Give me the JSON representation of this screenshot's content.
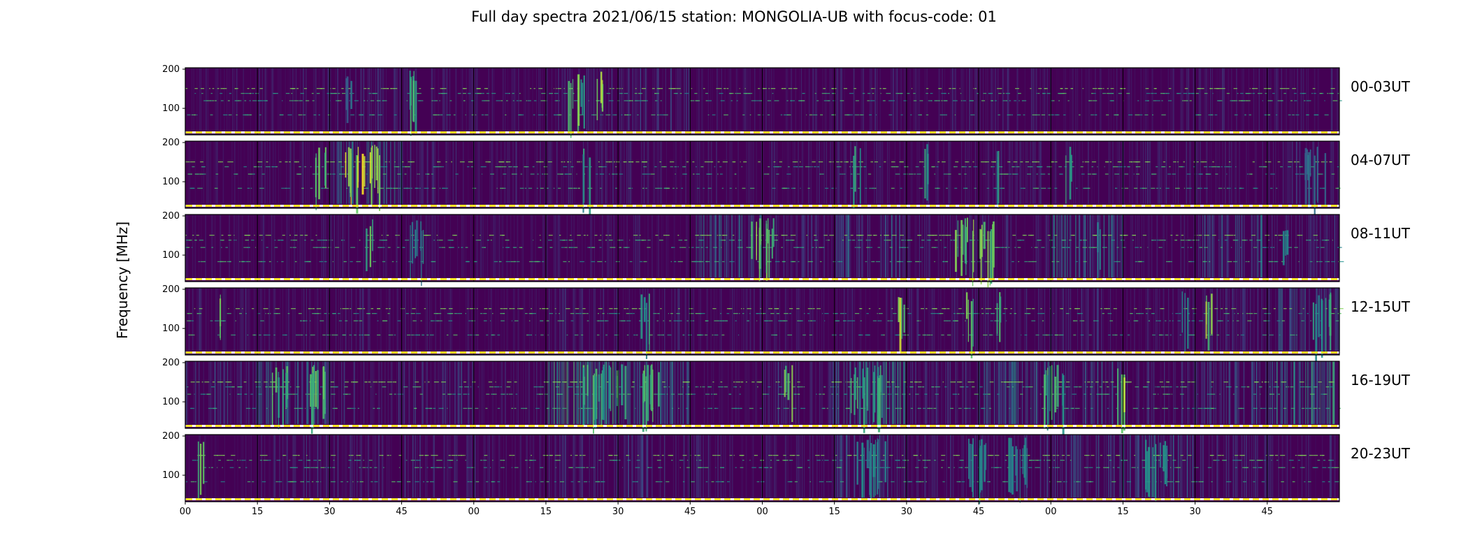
{
  "title": "Full day spectra 2021/06/15 station: MONGOLIA-UB with focus-code: 01",
  "ylabel": "Frequency [MHz]",
  "chart_data": {
    "type": "heatmap",
    "title": "Full day spectra 2021/06/15 station: MONGOLIA-UB with focus-code: 01",
    "ylabel": "Frequency [MHz]",
    "ylim": [
      45,
      200
    ],
    "y_ticks": [
      "100",
      "200"
    ],
    "x_ticks": [
      "00",
      "15",
      "30",
      "45",
      "00",
      "15",
      "30",
      "45",
      "00",
      "15",
      "30",
      "45",
      "00",
      "15",
      "30",
      "45"
    ],
    "colormap": "viridis",
    "colors": {
      "low": "#440154",
      "mid": "#21918c",
      "high": "#fde725",
      "marker": "#fde725"
    },
    "rows": [
      {
        "label": "00-03UT",
        "segments": 16,
        "bright_bursts": [
          [
            3.1,
            0.2,
            0.7
          ],
          [
            5.3,
            0.15,
            0.9
          ],
          [
            5.7,
            0.12,
            0.9
          ],
          [
            5.45,
            0.1,
            0.6
          ],
          [
            2.2,
            0.1,
            0.4
          ]
        ],
        "activity": [
          0.05,
          0.12,
          0.15,
          0.12,
          0.08,
          0.15,
          0.22,
          0.08,
          0.08,
          0.12,
          0.1,
          0.15,
          0.05,
          0.1,
          0.12,
          0.1
        ]
      },
      {
        "label": "04-07UT",
        "segments": 16,
        "bright_bursts": [
          [
            1.8,
            0.15,
            0.8
          ],
          [
            2.2,
            0.5,
            1.0
          ],
          [
            5.5,
            0.1,
            0.6
          ],
          [
            9.25,
            0.1,
            0.6
          ],
          [
            10.2,
            0.1,
            0.6
          ],
          [
            11.2,
            0.1,
            0.6
          ],
          [
            12.2,
            0.1,
            0.6
          ],
          [
            15.5,
            0.3,
            0.4
          ]
        ],
        "activity": [
          0.05,
          0.1,
          0.45,
          0.15,
          0.12,
          0.15,
          0.1,
          0.08,
          0.1,
          0.12,
          0.1,
          0.12,
          0.1,
          0.12,
          0.1,
          0.15
        ]
      },
      {
        "label": "08-11UT",
        "segments": 16,
        "bright_bursts": [
          [
            2.5,
            0.1,
            0.8
          ],
          [
            3.1,
            0.2,
            0.5
          ],
          [
            7.8,
            0.4,
            0.8
          ],
          [
            10.6,
            0.6,
            0.8
          ],
          [
            12.6,
            0.1,
            0.5
          ],
          [
            15.2,
            0.1,
            0.5
          ]
        ],
        "activity": [
          0.05,
          0.1,
          0.1,
          0.08,
          0.08,
          0.1,
          0.08,
          0.4,
          0.2,
          0.35,
          0.15,
          0.15,
          0.45,
          0.08,
          0.35,
          0.2
        ]
      },
      {
        "label": "12-15UT",
        "segments": 16,
        "bright_bursts": [
          [
            0.4,
            0.1,
            0.9
          ],
          [
            6.3,
            0.15,
            0.6
          ],
          [
            9.85,
            0.12,
            0.9
          ],
          [
            10.8,
            0.12,
            0.8
          ],
          [
            11.2,
            0.1,
            0.7
          ],
          [
            13.8,
            0.1,
            0.6
          ],
          [
            14.1,
            0.12,
            0.9
          ],
          [
            15.6,
            0.3,
            0.6
          ]
        ],
        "activity": [
          0.12,
          0.12,
          0.12,
          0.08,
          0.05,
          0.15,
          0.12,
          0.12,
          0.1,
          0.1,
          0.15,
          0.15,
          0.18,
          0.12,
          0.2,
          0.35
        ]
      },
      {
        "label": "16-19UT",
        "segments": 16,
        "bright_bursts": [
          [
            1.2,
            0.2,
            0.7
          ],
          [
            1.7,
            0.3,
            0.8
          ],
          [
            5.5,
            0.6,
            0.7
          ],
          [
            6.3,
            0.3,
            0.8
          ],
          [
            8.3,
            0.12,
            0.8
          ],
          [
            9.2,
            0.5,
            0.7
          ],
          [
            11.9,
            0.3,
            0.7
          ],
          [
            12.9,
            0.12,
            0.9
          ]
        ],
        "activity": [
          0.25,
          0.45,
          0.15,
          0.25,
          0.1,
          0.65,
          0.45,
          0.05,
          0.2,
          0.55,
          0.2,
          0.45,
          0.3,
          0.15,
          0.3,
          0.55
        ]
      },
      {
        "label": "20-23UT",
        "segments": 16,
        "bright_bursts": [
          [
            0.15,
            0.1,
            0.9
          ],
          [
            9.3,
            0.4,
            0.5
          ],
          [
            10.8,
            0.3,
            0.5
          ],
          [
            11.4,
            0.3,
            0.5
          ],
          [
            13.3,
            0.3,
            0.5
          ]
        ],
        "activity": [
          0.02,
          0.2,
          0.15,
          0.2,
          0.12,
          0.18,
          0.2,
          0.12,
          0.12,
          0.3,
          0.15,
          0.2,
          0.3,
          0.35,
          0.2,
          0.12
        ]
      }
    ]
  }
}
